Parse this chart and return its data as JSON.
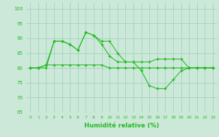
{
  "xlabel": "Humidité relative (%)",
  "xlim": [
    -0.5,
    23.5
  ],
  "ylim": [
    65,
    102
  ],
  "yticks": [
    65,
    70,
    75,
    80,
    85,
    90,
    95,
    100
  ],
  "xticks": [
    0,
    1,
    2,
    3,
    4,
    5,
    6,
    7,
    8,
    9,
    10,
    11,
    12,
    13,
    14,
    15,
    16,
    17,
    18,
    19,
    20,
    21,
    22,
    23
  ],
  "background_color": "#cce8d8",
  "grid_color": "#99ccbb",
  "line_color": "#22bb22",
  "line1": [
    80,
    80,
    80,
    89,
    89,
    88,
    86,
    92,
    91,
    89,
    89,
    85,
    82,
    82,
    82,
    82,
    83,
    83,
    83,
    83,
    80,
    80,
    80,
    80
  ],
  "line2": [
    80,
    80,
    81,
    89,
    89,
    88,
    86,
    92,
    91,
    88,
    84,
    82,
    82,
    82,
    79,
    74,
    73,
    73,
    76,
    79,
    80,
    80,
    80,
    80
  ],
  "line3": [
    80,
    80,
    81,
    81,
    81,
    81,
    81,
    81,
    81,
    81,
    80,
    80,
    80,
    80,
    80,
    80,
    80,
    80,
    80,
    80,
    80,
    80,
    80,
    80
  ]
}
